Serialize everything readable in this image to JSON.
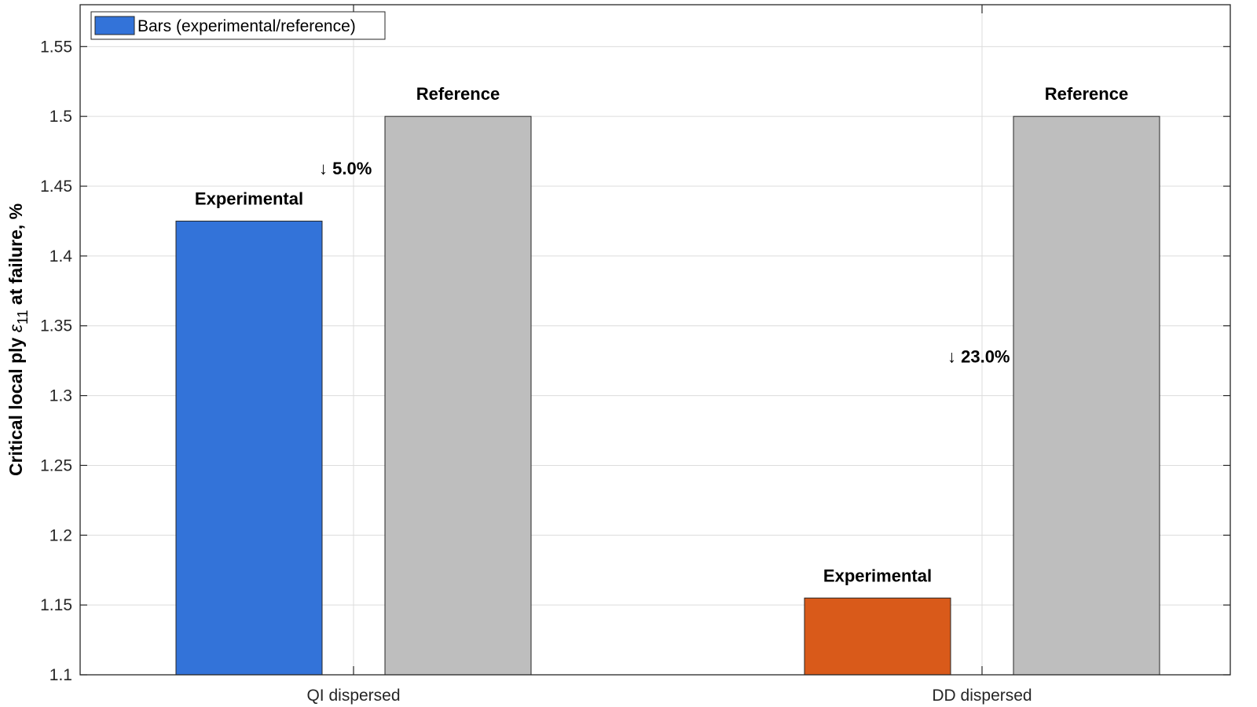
{
  "chart_data": {
    "type": "bar",
    "categories": [
      "QI dispersed",
      "DD dispersed"
    ],
    "series": [
      {
        "name": "Experimental",
        "values": [
          1.425,
          1.155
        ]
      },
      {
        "name": "Reference",
        "values": [
          1.5,
          1.5
        ]
      }
    ],
    "experimental_colors": [
      "#3373D9",
      "#D95A1A"
    ],
    "reference_color": "#BEBEBE",
    "bar_labels": {
      "experimental": "Experimental",
      "reference": "Reference"
    },
    "annotations": [
      "↓ 5.0%",
      "↓ 23.0%"
    ],
    "ylabel": {
      "main": "Critical local ply ",
      "symbol": "ε",
      "subscript": "11",
      "suffix": " at failure, %"
    },
    "xlabel": "",
    "ylim": [
      1.1,
      1.58
    ],
    "yticks": [
      1.1,
      1.15,
      1.2,
      1.25,
      1.3,
      1.35,
      1.4,
      1.45,
      1.5,
      1.55
    ],
    "ytick_labels": [
      "1.1",
      "1.15",
      "1.2",
      "1.25",
      "1.3",
      "1.35",
      "1.4",
      "1.45",
      "1.5",
      "1.55"
    ],
    "grid": true,
    "legend": {
      "label": "Bars (experimental/reference)",
      "placement": "top-left",
      "color": "#3373D9"
    }
  }
}
